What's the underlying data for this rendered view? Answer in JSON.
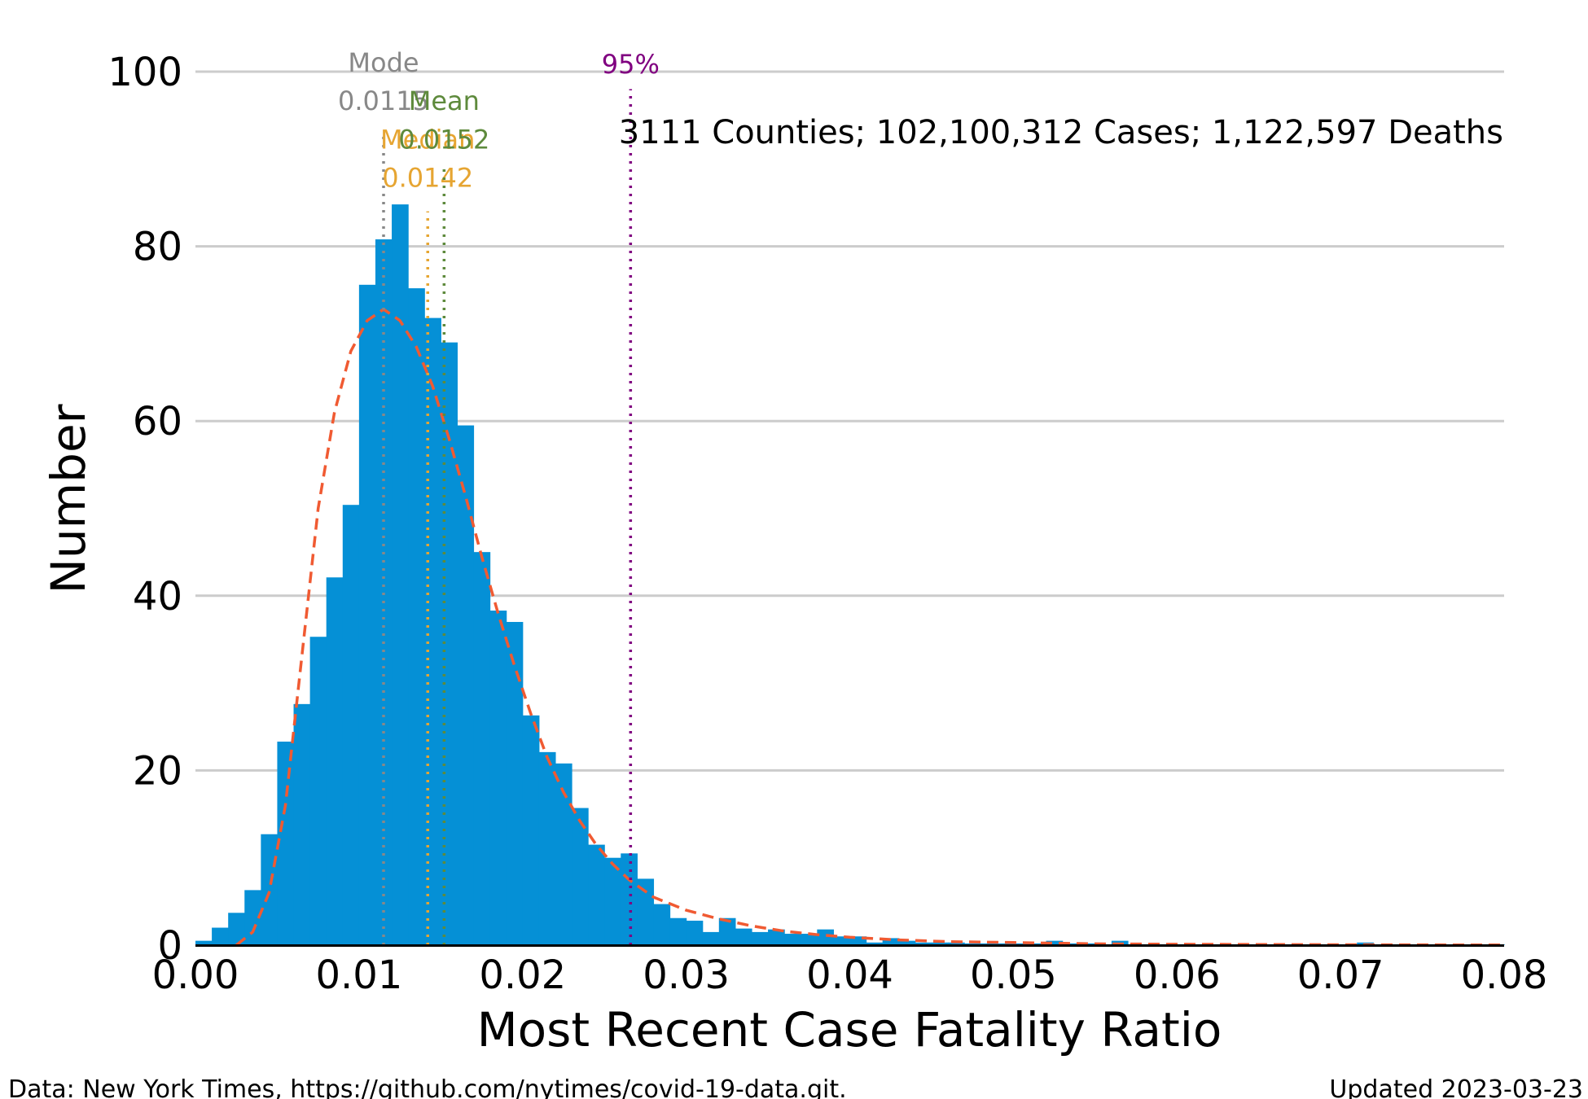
{
  "chart_data": {
    "type": "bar",
    "xlabel": "Most Recent Case Fatality Ratio",
    "ylabel": "Number",
    "xlim": [
      0.0,
      0.08
    ],
    "ylim": [
      0,
      100
    ],
    "x_ticks": [
      "0.00",
      "0.01",
      "0.02",
      "0.03",
      "0.04",
      "0.05",
      "0.06",
      "0.07",
      "0.08"
    ],
    "y_ticks": [
      "0",
      "20",
      "40",
      "60",
      "80",
      "100"
    ],
    "grid": "horizontal",
    "bin_width": 0.001,
    "bins": [
      [
        0.0,
        0.5
      ],
      [
        0.001,
        2
      ],
      [
        0.002,
        3.7
      ],
      [
        0.003,
        6.3
      ],
      [
        0.004,
        12.7
      ],
      [
        0.005,
        23.3
      ],
      [
        0.006,
        27.6
      ],
      [
        0.007,
        35.3
      ],
      [
        0.008,
        42.1
      ],
      [
        0.009,
        50.4
      ],
      [
        0.01,
        75.6
      ],
      [
        0.011,
        80.8
      ],
      [
        0.012,
        84.8
      ],
      [
        0.013,
        75.2
      ],
      [
        0.014,
        71.8
      ],
      [
        0.015,
        69
      ],
      [
        0.016,
        59.5
      ],
      [
        0.017,
        45
      ],
      [
        0.018,
        38.3
      ],
      [
        0.019,
        37
      ],
      [
        0.02,
        26.3
      ],
      [
        0.021,
        22.1
      ],
      [
        0.022,
        20.8
      ],
      [
        0.023,
        15.7
      ],
      [
        0.024,
        11.5
      ],
      [
        0.025,
        10
      ],
      [
        0.026,
        10.5
      ],
      [
        0.027,
        7.6
      ],
      [
        0.028,
        4.7
      ],
      [
        0.029,
        3.1
      ],
      [
        0.03,
        2.8
      ],
      [
        0.031,
        1.5
      ],
      [
        0.032,
        3.1
      ],
      [
        0.033,
        1.9
      ],
      [
        0.034,
        1.5
      ],
      [
        0.035,
        1.8
      ],
      [
        0.036,
        1.3
      ],
      [
        0.037,
        1.3
      ],
      [
        0.038,
        1.8
      ],
      [
        0.039,
        1
      ],
      [
        0.04,
        1
      ],
      [
        0.041,
        0.3
      ],
      [
        0.042,
        0.8
      ],
      [
        0.043,
        0.5
      ],
      [
        0.044,
        0.3
      ],
      [
        0.045,
        0.3
      ],
      [
        0.046,
        0.3
      ],
      [
        0.047,
        0.2
      ],
      [
        0.048,
        0.2
      ],
      [
        0.049,
        0.2
      ],
      [
        0.05,
        0.2
      ],
      [
        0.051,
        0.2
      ],
      [
        0.052,
        0.5
      ],
      [
        0.053,
        0.2
      ],
      [
        0.054,
        0.2
      ],
      [
        0.055,
        0.1
      ],
      [
        0.056,
        0.5
      ],
      [
        0.057,
        0.1
      ],
      [
        0.058,
        0.1
      ],
      [
        0.059,
        0.1
      ],
      [
        0.06,
        0.1
      ],
      [
        0.061,
        0.1
      ],
      [
        0.062,
        0.1
      ],
      [
        0.063,
        0.1
      ],
      [
        0.064,
        0.1
      ],
      [
        0.065,
        0.1
      ],
      [
        0.066,
        0.1
      ],
      [
        0.067,
        0.1
      ],
      [
        0.068,
        0.1
      ],
      [
        0.069,
        0.1
      ],
      [
        0.07,
        0.1
      ],
      [
        0.071,
        0.3
      ],
      [
        0.072,
        0.1
      ],
      [
        0.073,
        0.1
      ],
      [
        0.074,
        0.1
      ],
      [
        0.075,
        0.1
      ],
      [
        0.076,
        0.1
      ],
      [
        0.077,
        0.1
      ],
      [
        0.078,
        0.1
      ],
      [
        0.079,
        0.1
      ]
    ],
    "fit_curve": {
      "style": "dashed",
      "points": [
        [
          0.0025,
          0
        ],
        [
          0.0035,
          1.5
        ],
        [
          0.0045,
          6
        ],
        [
          0.0055,
          16
        ],
        [
          0.0065,
          33
        ],
        [
          0.0075,
          50
        ],
        [
          0.0085,
          61
        ],
        [
          0.0095,
          68
        ],
        [
          0.0105,
          71.5
        ],
        [
          0.0115,
          72.8
        ],
        [
          0.0125,
          71.5
        ],
        [
          0.0135,
          68.5
        ],
        [
          0.0145,
          64
        ],
        [
          0.0155,
          58
        ],
        [
          0.0165,
          51.5
        ],
        [
          0.0175,
          44.5
        ],
        [
          0.0185,
          38
        ],
        [
          0.0195,
          32
        ],
        [
          0.0205,
          26.5
        ],
        [
          0.0215,
          21.5
        ],
        [
          0.0225,
          17.5
        ],
        [
          0.0235,
          14.2
        ],
        [
          0.0245,
          11.5
        ],
        [
          0.0255,
          9.3
        ],
        [
          0.0265,
          7.5
        ],
        [
          0.028,
          5.5
        ],
        [
          0.03,
          4.0
        ],
        [
          0.032,
          3.0
        ],
        [
          0.034,
          2.2
        ],
        [
          0.036,
          1.6
        ],
        [
          0.038,
          1.2
        ],
        [
          0.04,
          0.9
        ],
        [
          0.043,
          0.6
        ],
        [
          0.046,
          0.4
        ],
        [
          0.05,
          0.3
        ],
        [
          0.055,
          0.15
        ],
        [
          0.06,
          0.1
        ],
        [
          0.07,
          0.05
        ],
        [
          0.08,
          0.02
        ]
      ]
    },
    "stat_lines": [
      {
        "name": "Mode",
        "x": 0.0115,
        "label": "Mode",
        "value_label": "0.0115",
        "color": "#888888",
        "line_top": 93,
        "label_y": 100,
        "value_y": 95.6
      },
      {
        "name": "Median",
        "x": 0.0142,
        "label": "Median",
        "value_label": "0.0142",
        "color": "#e6a532",
        "line_top": 84,
        "label_y": 91.2,
        "value_y": 86.8
      },
      {
        "name": "Mean",
        "x": 0.0152,
        "label": "Mean",
        "value_label": "0.0152",
        "color": "#5e8a3c",
        "line_top": 89,
        "label_y": 95.6,
        "value_y": 91.2
      },
      {
        "name": "95%",
        "x": 0.0266,
        "label": "95%",
        "value_label": "",
        "color": "#800080",
        "line_top": 98,
        "label_y": 99.8,
        "value_y": null
      }
    ],
    "annotation": "3111 Counties; 102,100,312 Cases; 1,122,597 Deaths"
  },
  "colors": {
    "bar": "#0590d6",
    "fit": "#f05a32",
    "grid": "#cccccc",
    "axis": "#000000"
  },
  "footer": {
    "source": "Data: New York Times, https://github.com/nytimes/covid-19-data.git.",
    "updated": "Updated 2023-03-23"
  }
}
